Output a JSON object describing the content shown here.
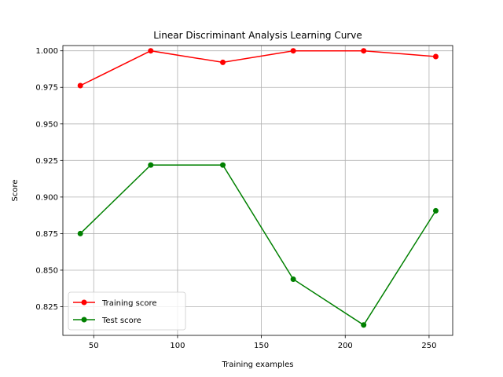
{
  "chart_data": {
    "type": "line",
    "title": "Linear Discriminant Analysis Learning Curve",
    "xlabel": "Training examples",
    "ylabel": "Score",
    "xlim": [
      31.6,
      264.1
    ],
    "ylim": [
      0.8054,
      1.0036
    ],
    "xticks": [
      50,
      100,
      150,
      200,
      250
    ],
    "xtick_labels": [
      "50",
      "100",
      "150",
      "200",
      "250"
    ],
    "yticks": [
      0.825,
      0.85,
      0.875,
      0.9,
      0.925,
      0.95,
      0.975,
      1.0
    ],
    "ytick_labels": [
      "0.825",
      "0.850",
      "0.875",
      "0.900",
      "0.925",
      "0.950",
      "0.975",
      "1.000"
    ],
    "grid": true,
    "legend_position": "lower-left",
    "x": [
      42,
      84,
      127,
      169,
      211,
      254
    ],
    "series": [
      {
        "name": "Training score",
        "color": "#ff0000",
        "marker": "circle",
        "values": [
          0.9762,
          1.0,
          0.9921,
          1.0,
          1.0,
          0.9961
        ]
      },
      {
        "name": "Test score",
        "color": "#008000",
        "marker": "circle",
        "values": [
          0.875,
          0.9219,
          0.9219,
          0.8438,
          0.8125,
          0.8906
        ]
      }
    ]
  }
}
